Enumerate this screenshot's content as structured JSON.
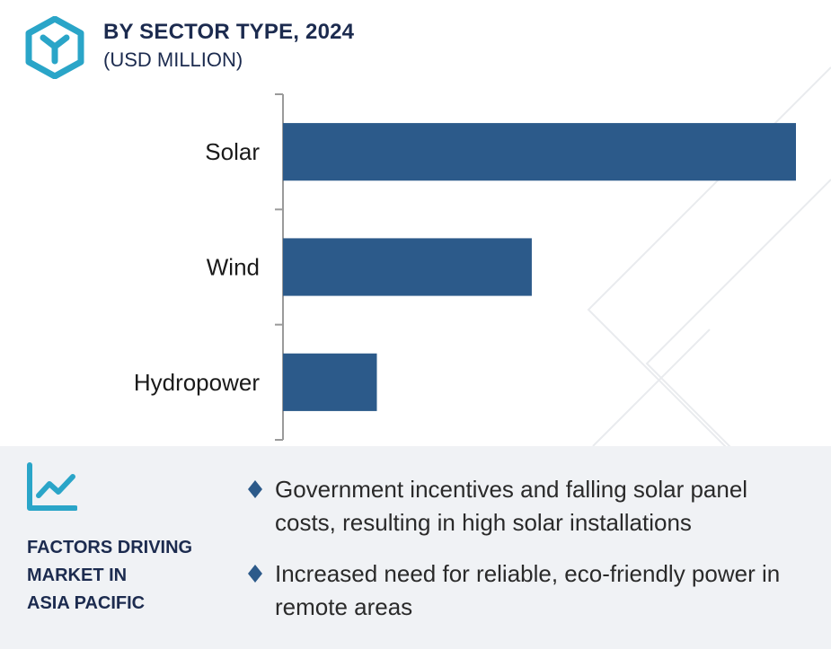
{
  "header": {
    "title": "BY SECTOR TYPE, 2024",
    "subtitle": "(USD MILLION)",
    "logo_icon": "cube-y-icon"
  },
  "colors": {
    "bar": "#2c5a8a",
    "accent": "#2aa5c8",
    "title": "#1c2b4f",
    "panel_bg": "#f0f2f5"
  },
  "chart_data": {
    "type": "bar",
    "orientation": "horizontal",
    "categories": [
      "Solar",
      "Wind",
      "Hydropower"
    ],
    "values": [
      100,
      48.5,
      18.3
    ],
    "xlim": [
      0,
      100
    ],
    "grid": false,
    "title": "BY SECTOR TYPE, 2024",
    "subtitle": "(USD MILLION)"
  },
  "factors_panel": {
    "icon": "trend-chart-icon",
    "title_lines": [
      "FACTORS DRIVING",
      "MARKET IN",
      "ASIA PACIFIC"
    ],
    "items": [
      "Government incentives and falling solar panel costs, resulting in high solar installations",
      "Increased need for reliable, eco-friendly power in remote areas"
    ]
  }
}
